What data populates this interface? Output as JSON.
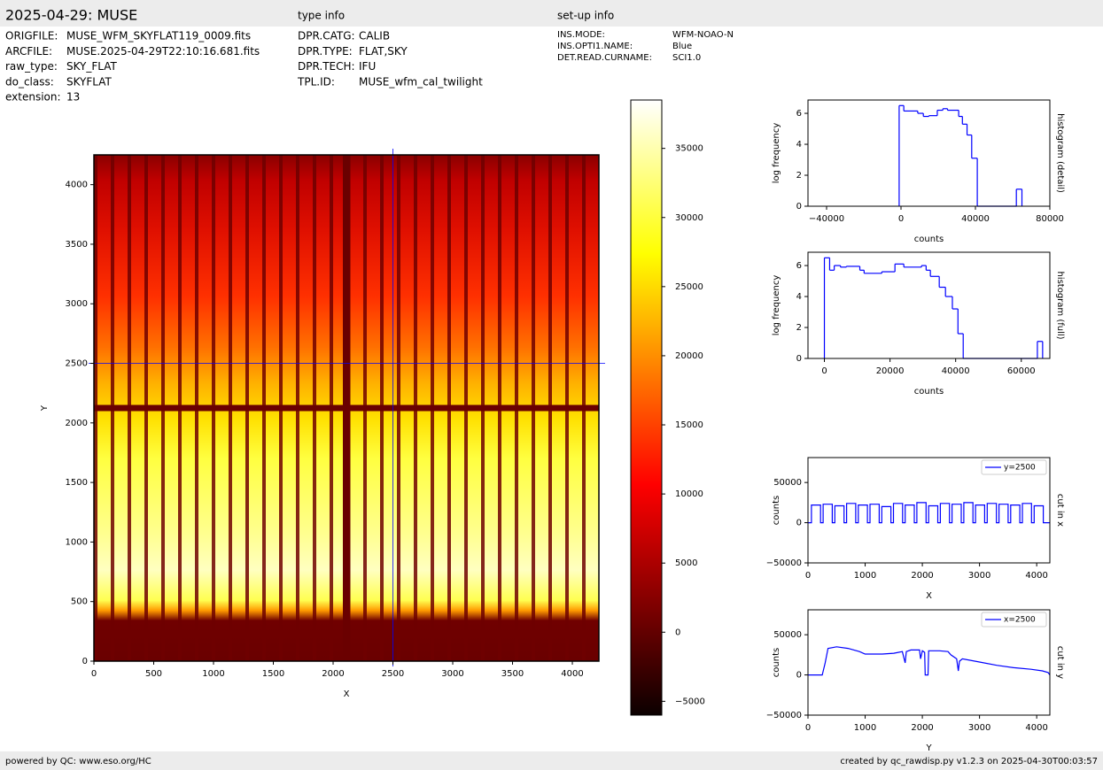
{
  "header": {
    "title": "2025-04-29: MUSE",
    "type_info_title": "type info",
    "setup_info_title": "set-up info",
    "file_info": [
      {
        "label": "ORIGFILE:",
        "value": "MUSE_WFM_SKYFLAT119_0009.fits"
      },
      {
        "label": "ARCFILE:",
        "value": "MUSE.2025-04-29T22:10:16.681.fits"
      },
      {
        "label": "raw_type:",
        "value": "SKY_FLAT"
      },
      {
        "label": "do_class:",
        "value": "SKYFLAT"
      },
      {
        "label": "extension:",
        "value": "13"
      }
    ],
    "type_info": [
      {
        "label": "DPR.CATG:",
        "value": "CALIB"
      },
      {
        "label": "DPR.TYPE:",
        "value": "FLAT,SKY"
      },
      {
        "label": "DPR.TECH:",
        "value": "IFU"
      },
      {
        "label": "TPL.ID:",
        "value": "MUSE_wfm_cal_twilight"
      }
    ],
    "setup_info": [
      {
        "label": "INS.MODE:",
        "value": "WFM-NOAO-N"
      },
      {
        "label": "INS.OPTI1.NAME:",
        "value": "Blue"
      },
      {
        "label": "DET.READ.CURNAME:",
        "value": "SCI1.0"
      }
    ]
  },
  "footer": {
    "left": "powered by QC: www.eso.org/HC",
    "right": "created by qc_rawdisp.py v1.2.3 on 2025-04-30T00:03:57"
  },
  "chart_data": [
    {
      "type": "image",
      "xlabel": "X",
      "ylabel": "Y",
      "xlim": [
        0,
        4222
      ],
      "ylim": [
        0,
        4250
      ],
      "xticks": [
        0,
        500,
        1000,
        1500,
        2000,
        2500,
        3000,
        3500,
        4000
      ],
      "yticks": [
        0,
        500,
        1000,
        1500,
        2000,
        2500,
        3000,
        3500,
        4000
      ],
      "crosshair": {
        "x": 2500,
        "y": 2500
      },
      "crosshair_color": "#0000ff"
    },
    {
      "type": "colorbar",
      "colormap": "hot",
      "ylim": [
        -6000,
        38500
      ],
      "yticks": [
        {
          "value": -5000,
          "label": "−5000"
        },
        0,
        5000,
        10000,
        15000,
        20000,
        25000,
        30000,
        35000
      ]
    },
    {
      "type": "histogram",
      "xlabel": "counts",
      "ylabel": "log frequency",
      "side_label": "histogram (detail)",
      "color": "#0000ff",
      "xlim": [
        -50000,
        80000
      ],
      "ylim": [
        0,
        6.86
      ],
      "xticks": [
        {
          "value": -40000,
          "label": "−40000"
        },
        0,
        40000,
        80000
      ],
      "yticks": [
        0,
        2,
        4,
        6
      ],
      "bins": [
        -1000,
        1500,
        9000,
        12000,
        15000,
        19500,
        22500,
        25000,
        31000,
        33000,
        35500,
        38000,
        41000,
        62000,
        65000
      ],
      "values": [
        6.5,
        6.15,
        6.0,
        5.8,
        5.85,
        6.2,
        6.3,
        6.2,
        5.8,
        5.3,
        4.6,
        3.1,
        0,
        1.1
      ]
    },
    {
      "type": "histogram",
      "xlabel": "counts",
      "ylabel": "log frequency",
      "side_label": "histogram (full)",
      "color": "#0000ff",
      "xlim": [
        -5000,
        68700
      ],
      "ylim": [
        0,
        6.86
      ],
      "xticks": [
        0,
        20000,
        40000,
        60000
      ],
      "yticks": [
        0,
        2,
        4,
        6
      ],
      "bins": [
        0,
        1600,
        3000,
        4900,
        6700,
        10800,
        12100,
        17500,
        21500,
        24200,
        29600,
        31000,
        32300,
        35000,
        36900,
        39000,
        40700,
        42300,
        64900,
        66500
      ],
      "values": [
        6.5,
        5.7,
        6.0,
        5.9,
        5.95,
        5.7,
        5.5,
        5.6,
        6.1,
        5.9,
        6.0,
        5.7,
        5.3,
        4.6,
        4.0,
        3.2,
        1.6,
        0,
        1.1
      ]
    },
    {
      "type": "line",
      "xlabel": "X",
      "ylabel": "counts",
      "side_label": "cut in x",
      "legend": "upper right",
      "xlim": [
        0,
        4230
      ],
      "ylim": [
        -50000,
        81000
      ],
      "xticks": [
        0,
        1000,
        2000,
        3000,
        4000
      ],
      "yticks": [
        {
          "value": -50000,
          "label": "−50000"
        },
        0,
        50000
      ],
      "x": [
        0,
        60,
        60,
        220,
        220,
        265,
        265,
        425,
        425,
        470,
        470,
        630,
        630,
        675,
        675,
        835,
        835,
        880,
        880,
        1040,
        1040,
        1085,
        1085,
        1245,
        1245,
        1290,
        1290,
        1450,
        1450,
        1495,
        1495,
        1655,
        1655,
        1700,
        1700,
        1860,
        1860,
        1905,
        1905,
        2065,
        2065,
        2110,
        2110,
        2270,
        2270,
        2315,
        2315,
        2475,
        2475,
        2520,
        2520,
        2680,
        2680,
        2725,
        2725,
        2885,
        2885,
        2930,
        2930,
        3090,
        3090,
        3135,
        3135,
        3295,
        3295,
        3340,
        3340,
        3500,
        3500,
        3545,
        3545,
        3705,
        3705,
        3750,
        3750,
        3910,
        3910,
        3955,
        3955,
        4115,
        4115,
        4230
      ],
      "series": [
        {
          "name": "y=2500",
          "color": "#0000ff",
          "values": [
            0,
            0,
            22000,
            22000,
            0,
            0,
            23000,
            23000,
            0,
            0,
            21000,
            21000,
            0,
            0,
            24000,
            24000,
            0,
            0,
            22000,
            22000,
            0,
            0,
            23000,
            23000,
            0,
            0,
            20000,
            20000,
            0,
            0,
            24000,
            24000,
            0,
            0,
            22000,
            22000,
            0,
            0,
            25000,
            25000,
            0,
            0,
            21000,
            21000,
            0,
            0,
            24000,
            24000,
            0,
            0,
            23000,
            23000,
            0,
            0,
            25000,
            25000,
            0,
            0,
            22000,
            22000,
            0,
            0,
            24000,
            24000,
            0,
            0,
            23000,
            23000,
            0,
            0,
            22000,
            22000,
            0,
            0,
            24000,
            24000,
            0,
            0,
            21000,
            21000,
            0,
            0
          ]
        }
      ]
    },
    {
      "type": "line",
      "xlabel": "Y",
      "ylabel": "counts",
      "side_label": "cut in y",
      "legend": "upper right",
      "xlim": [
        0,
        4230
      ],
      "ylim": [
        -50000,
        81000
      ],
      "xticks": [
        0,
        1000,
        2000,
        3000,
        4000
      ],
      "yticks": [
        {
          "value": -50000,
          "label": "−50000"
        },
        0,
        50000
      ],
      "x": [
        0,
        250,
        300,
        350,
        500,
        700,
        900,
        1000,
        1300,
        1500,
        1650,
        1700,
        1720,
        1800,
        1950,
        1970,
        2000,
        2040,
        2050,
        2100,
        2110,
        2300,
        2450,
        2500,
        2600,
        2630,
        2650,
        2700,
        3000,
        3300,
        3600,
        3900,
        4100,
        4200,
        4230
      ],
      "series": [
        {
          "name": "x=2500",
          "color": "#0000ff",
          "values": [
            0,
            0,
            15000,
            33000,
            35000,
            33000,
            29000,
            26000,
            26000,
            27000,
            29000,
            15000,
            29000,
            31000,
            31000,
            20000,
            30000,
            28000,
            0,
            0,
            30000,
            30000,
            29000,
            25000,
            20000,
            5000,
            17000,
            20000,
            16000,
            12000,
            9000,
            7000,
            5000,
            3000,
            0
          ]
        }
      ]
    }
  ]
}
